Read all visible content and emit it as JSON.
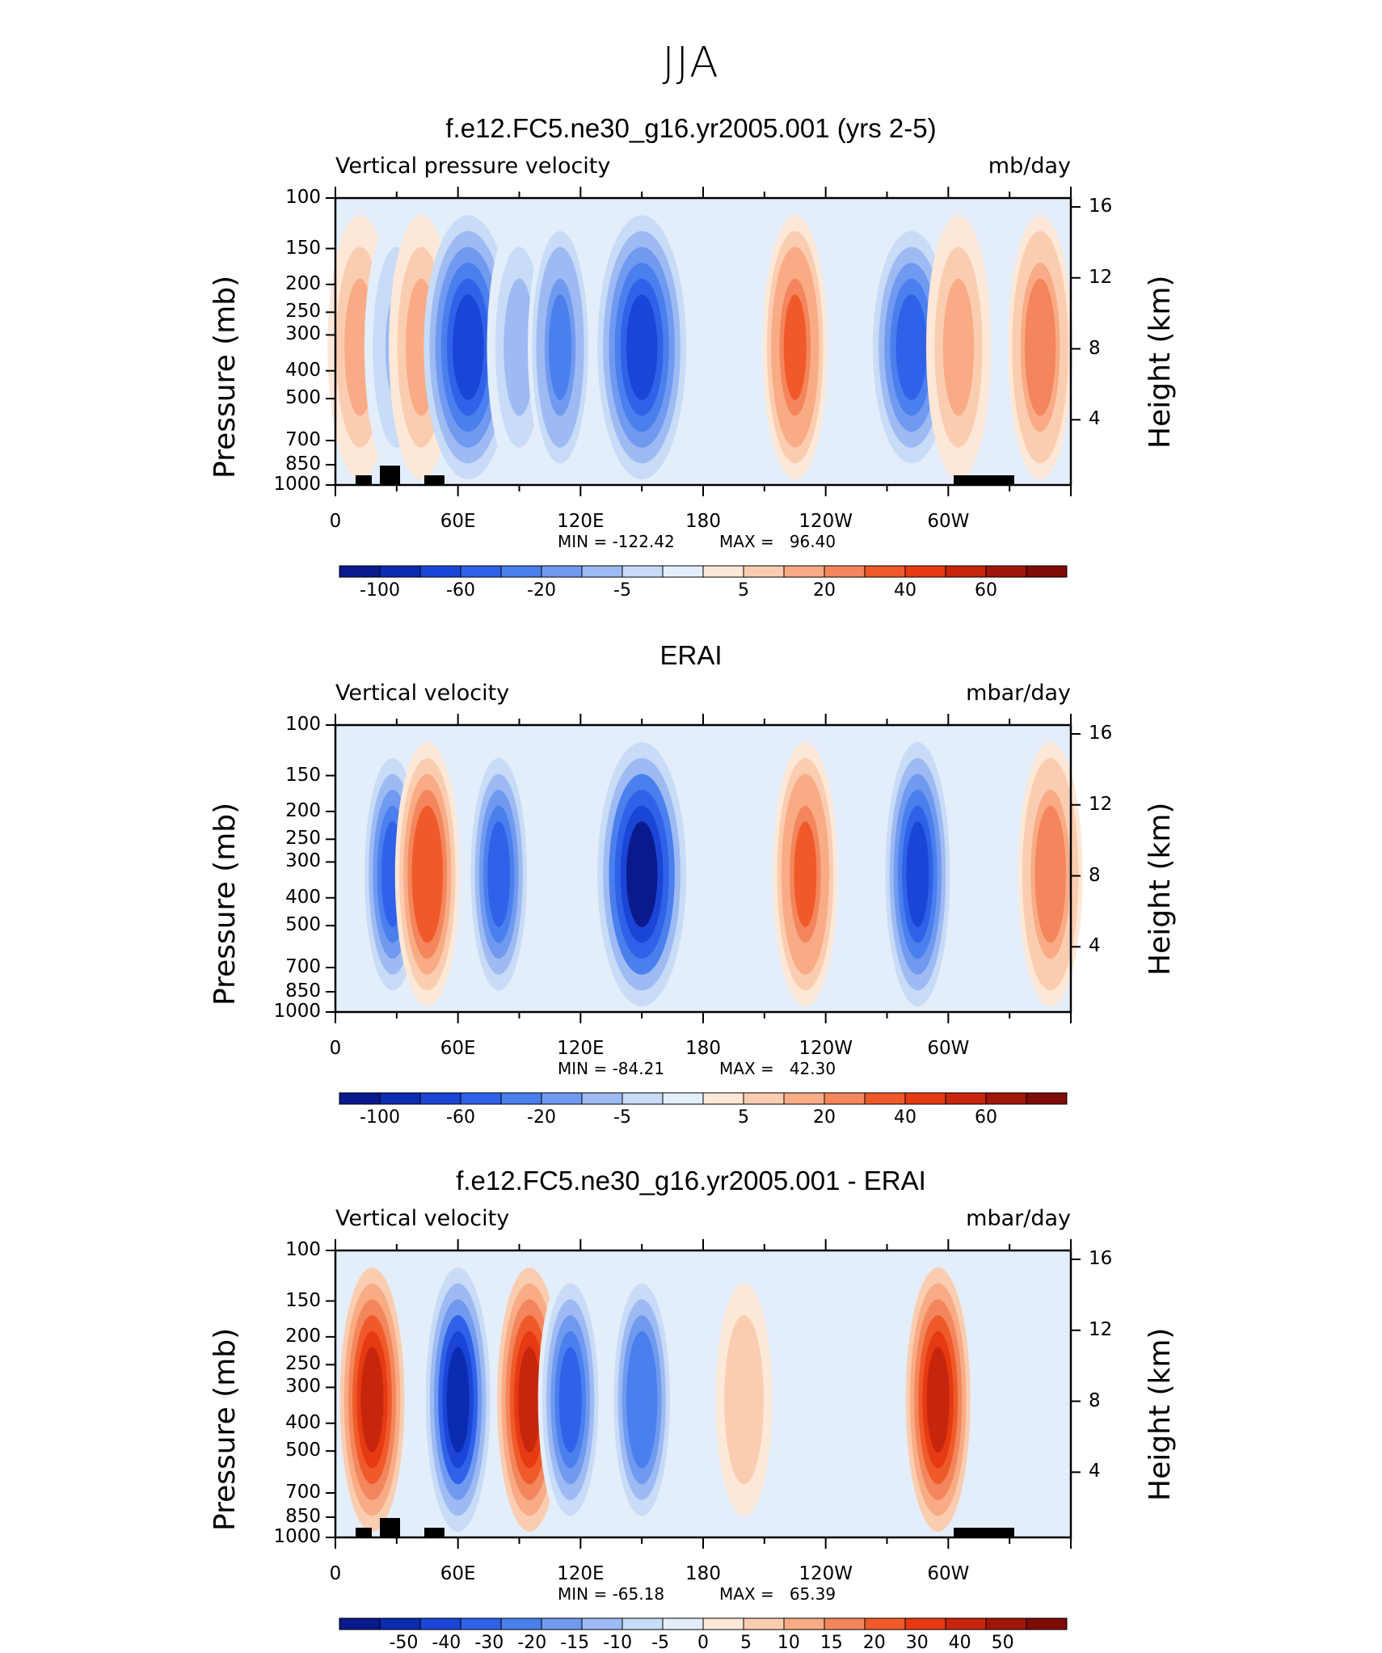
{
  "title": "JJA",
  "colors": {
    "blue_scale": [
      "#0a1a8c",
      "#0b2bb0",
      "#1b45d6",
      "#2f62e8",
      "#4a7fed",
      "#7099f0",
      "#9dbaf3",
      "#c8dbf7",
      "#e4eefb"
    ],
    "red_scale": [
      "#fde8d8",
      "#fbcdb0",
      "#f8ab85",
      "#f3865c",
      "#f05a2a",
      "#e63a13",
      "#c8250d",
      "#a1160a",
      "#7e0b05"
    ],
    "land": "#000000"
  },
  "chart_data": [
    {
      "type": "heatmap",
      "title": "f.e12.FC5.ne30_g16.yr2005.001 (yrs 2-5)",
      "subtitle_left": "Vertical pressure velocity",
      "units": "mb/day",
      "ylabel": "Pressure (mb)",
      "ylabel_right": "Height (km)",
      "yticks": [
        "100",
        "150",
        "200",
        "250",
        "300",
        "400",
        "500",
        "700",
        "850",
        "1000"
      ],
      "yticks_right": [
        "16",
        "12",
        "8",
        "4"
      ],
      "xticks": [
        "0",
        "60E",
        "120E",
        "180",
        "120W",
        "60W"
      ],
      "min_label": "MIN = -122.42",
      "max_label": "MAX =   96.40",
      "min": -122.42,
      "max": 96.4,
      "colorbar_labels": [
        "-100",
        "-60",
        "-20",
        "-5",
        "5",
        "20",
        "40",
        "60"
      ],
      "features": [
        {
          "lon": 12,
          "value": 40
        },
        {
          "lon": 30,
          "value": -30
        },
        {
          "lon": 42,
          "value": 40
        },
        {
          "lon": 65,
          "value": -90
        },
        {
          "lon": 90,
          "value": -40
        },
        {
          "lon": 110,
          "value": -60
        },
        {
          "lon": 150,
          "value": -95
        },
        {
          "lon": 225,
          "value": 55
        },
        {
          "lon": 282,
          "value": -70
        },
        {
          "lon": 305,
          "value": 35
        },
        {
          "lon": 345,
          "value": 50
        }
      ]
    },
    {
      "type": "heatmap",
      "title": "ERAI",
      "subtitle_left": "Vertical velocity",
      "units": "mbar/day",
      "ylabel": "Pressure (mb)",
      "ylabel_right": "Height (km)",
      "yticks": [
        "100",
        "150",
        "200",
        "250",
        "300",
        "400",
        "500",
        "700",
        "850",
        "1000"
      ],
      "yticks_right": [
        "16",
        "12",
        "8",
        "4"
      ],
      "xticks": [
        "0",
        "60E",
        "120E",
        "180",
        "120W",
        "60W"
      ],
      "min_label": "MIN = -84.21",
      "max_label": "MAX =   42.30",
      "min": -84.21,
      "max": 42.3,
      "colorbar_labels": [
        "-100",
        "-60",
        "-20",
        "-5",
        "5",
        "20",
        "40",
        "60"
      ],
      "features": [
        {
          "lon": 28,
          "value": -50
        },
        {
          "lon": 45,
          "value": 45
        },
        {
          "lon": 80,
          "value": -50
        },
        {
          "lon": 150,
          "value": -75
        },
        {
          "lon": 230,
          "value": 40
        },
        {
          "lon": 285,
          "value": -60
        },
        {
          "lon": 350,
          "value": 35
        }
      ]
    },
    {
      "type": "heatmap",
      "title": "f.e12.FC5.ne30_g16.yr2005.001 - ERAI",
      "subtitle_left": "Vertical velocity",
      "units": "mbar/day",
      "ylabel": "Pressure (mb)",
      "ylabel_right": "Height (km)",
      "yticks": [
        "100",
        "150",
        "200",
        "250",
        "300",
        "400",
        "500",
        "700",
        "850",
        "1000"
      ],
      "yticks_right": [
        "16",
        "12",
        "8",
        "4"
      ],
      "xticks": [
        "0",
        "60E",
        "120E",
        "180",
        "120W",
        "60W"
      ],
      "min_label": "MIN = -65.18",
      "max_label": "MAX =   65.39",
      "min": -65.18,
      "max": 65.39,
      "colorbar_labels": [
        "-50",
        "-40",
        "-30",
        "-20",
        "-15",
        "-10",
        "-5",
        "0",
        "5",
        "10",
        "15",
        "20",
        "30",
        "40",
        "50"
      ],
      "features": [
        {
          "lon": 18,
          "value": 45
        },
        {
          "lon": 60,
          "value": -55
        },
        {
          "lon": 95,
          "value": 45
        },
        {
          "lon": 115,
          "value": -40
        },
        {
          "lon": 150,
          "value": -35
        },
        {
          "lon": 200,
          "value": 12
        },
        {
          "lon": 295,
          "value": 50
        }
      ]
    }
  ]
}
